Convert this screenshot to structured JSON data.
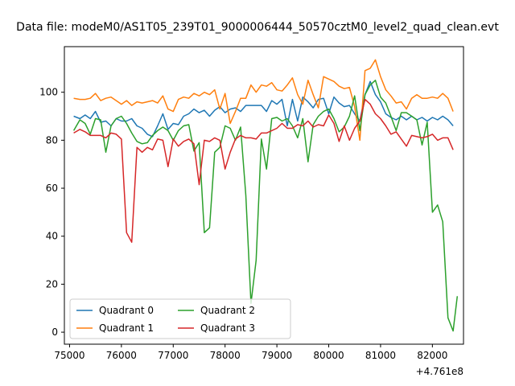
{
  "chart_data": {
    "type": "line",
    "title": "Data file: modeM0/AS1T05_239T01_9000006444_50570cztM0_level2_quad_clean.evt",
    "xlabel": "",
    "ylabel": "",
    "x_offset_label": "+4.761e8",
    "xlim": [
      74900,
      82600
    ],
    "ylim": [
      -5,
      119
    ],
    "x_ticks": [
      75000,
      76000,
      77000,
      78000,
      79000,
      80000,
      81000,
      82000
    ],
    "x_tick_labels": [
      "75000",
      "76000",
      "77000",
      "78000",
      "79000",
      "80000",
      "81000",
      "82000"
    ],
    "y_ticks": [
      0,
      20,
      40,
      60,
      80,
      100
    ],
    "y_tick_labels": [
      "0",
      "20",
      "40",
      "60",
      "80",
      "100"
    ],
    "legend_position": "lower-left",
    "legend_columns": 2,
    "series": [
      {
        "name": "Quadrant 0",
        "color": "#1f77b4",
        "points": [
          [
            75080,
            90
          ],
          [
            75200,
            89
          ],
          [
            75300,
            90.5
          ],
          [
            75400,
            89
          ],
          [
            75500,
            92
          ],
          [
            75600,
            87.5
          ],
          [
            75700,
            88
          ],
          [
            75800,
            86
          ],
          [
            75900,
            89
          ],
          [
            76000,
            88
          ],
          [
            76100,
            88
          ],
          [
            76200,
            89
          ],
          [
            76300,
            86
          ],
          [
            76400,
            85
          ],
          [
            76500,
            82.5
          ],
          [
            76600,
            81.5
          ],
          [
            76700,
            86
          ],
          [
            76800,
            91
          ],
          [
            76900,
            84.5
          ],
          [
            77000,
            87
          ],
          [
            77100,
            86.5
          ],
          [
            77200,
            90
          ],
          [
            77300,
            91
          ],
          [
            77400,
            93
          ],
          [
            77500,
            91.5
          ],
          [
            77600,
            92.5
          ],
          [
            77700,
            90
          ],
          [
            77800,
            92.5
          ],
          [
            77900,
            94
          ],
          [
            78000,
            91.5
          ],
          [
            78100,
            93
          ],
          [
            78200,
            93.5
          ],
          [
            78300,
            92
          ],
          [
            78400,
            94.5
          ],
          [
            78500,
            94.5
          ],
          [
            78600,
            94.5
          ],
          [
            78700,
            94.5
          ],
          [
            78800,
            92
          ],
          [
            78900,
            96.5
          ],
          [
            79000,
            95
          ],
          [
            79100,
            97
          ],
          [
            79200,
            86
          ],
          [
            79300,
            97
          ],
          [
            79400,
            88
          ],
          [
            79500,
            98
          ],
          [
            79600,
            96
          ],
          [
            79700,
            93.5
          ],
          [
            79800,
            97
          ],
          [
            79900,
            97.5
          ],
          [
            80000,
            91
          ],
          [
            80100,
            98
          ],
          [
            80200,
            95.5
          ],
          [
            80300,
            94
          ],
          [
            80400,
            94.5
          ],
          [
            80500,
            91
          ],
          [
            80600,
            88
          ],
          [
            80700,
            99
          ],
          [
            80800,
            104.5
          ],
          [
            80900,
            99
          ],
          [
            81000,
            96
          ],
          [
            81100,
            91
          ],
          [
            81200,
            89.5
          ],
          [
            81300,
            88.5
          ],
          [
            81400,
            90
          ],
          [
            81500,
            88.5
          ],
          [
            81600,
            90
          ],
          [
            81700,
            88.5
          ],
          [
            81800,
            89.5
          ],
          [
            81900,
            88
          ],
          [
            82000,
            89.5
          ],
          [
            82100,
            88.5
          ],
          [
            82200,
            90
          ],
          [
            82300,
            88.5
          ],
          [
            82400,
            86
          ]
        ]
      },
      {
        "name": "Quadrant 1",
        "color": "#ff7f0e",
        "points": [
          [
            75080,
            97.5
          ],
          [
            75200,
            97
          ],
          [
            75300,
            97
          ],
          [
            75400,
            97.5
          ],
          [
            75500,
            99.5
          ],
          [
            75600,
            96.5
          ],
          [
            75700,
            97.5
          ],
          [
            75800,
            98
          ],
          [
            75900,
            96.5
          ],
          [
            76000,
            95
          ],
          [
            76100,
            96.5
          ],
          [
            76200,
            94.5
          ],
          [
            76300,
            96
          ],
          [
            76400,
            95.5
          ],
          [
            76500,
            96
          ],
          [
            76600,
            96.5
          ],
          [
            76700,
            95.5
          ],
          [
            76800,
            98.5
          ],
          [
            76900,
            93
          ],
          [
            77000,
            92
          ],
          [
            77100,
            97
          ],
          [
            77200,
            98
          ],
          [
            77300,
            97.5
          ],
          [
            77400,
            99.5
          ],
          [
            77500,
            98.5
          ],
          [
            77600,
            100
          ],
          [
            77700,
            99
          ],
          [
            77800,
            101
          ],
          [
            77900,
            93
          ],
          [
            78000,
            99.5
          ],
          [
            78100,
            87
          ],
          [
            78200,
            92
          ],
          [
            78300,
            97.5
          ],
          [
            78400,
            97.5
          ],
          [
            78500,
            103
          ],
          [
            78600,
            100
          ],
          [
            78700,
            103
          ],
          [
            78800,
            102.5
          ],
          [
            78900,
            104
          ],
          [
            79000,
            101
          ],
          [
            79100,
            100.5
          ],
          [
            79200,
            103
          ],
          [
            79300,
            106
          ],
          [
            79400,
            99
          ],
          [
            79500,
            95
          ],
          [
            79600,
            105
          ],
          [
            79700,
            99
          ],
          [
            79800,
            93.5
          ],
          [
            79900,
            106.5
          ],
          [
            80000,
            105.5
          ],
          [
            80100,
            104.5
          ],
          [
            80200,
            102.5
          ],
          [
            80300,
            101.5
          ],
          [
            80400,
            102
          ],
          [
            80500,
            94
          ],
          [
            80600,
            80
          ],
          [
            80700,
            109
          ],
          [
            80800,
            110
          ],
          [
            80900,
            113.5
          ],
          [
            81000,
            106.5
          ],
          [
            81100,
            101
          ],
          [
            81200,
            98.5
          ],
          [
            81300,
            95.5
          ],
          [
            81400,
            96
          ],
          [
            81500,
            93
          ],
          [
            81600,
            97.5
          ],
          [
            81700,
            99
          ],
          [
            81800,
            97.5
          ],
          [
            81900,
            97.5
          ],
          [
            82000,
            98
          ],
          [
            82100,
            97.5
          ],
          [
            82200,
            99.5
          ],
          [
            82300,
            97.5
          ],
          [
            82400,
            92
          ]
        ]
      },
      {
        "name": "Quadrant 2",
        "color": "#2ca02c",
        "points": [
          [
            75080,
            84
          ],
          [
            75200,
            88.5
          ],
          [
            75300,
            87
          ],
          [
            75400,
            82.5
          ],
          [
            75500,
            89
          ],
          [
            75600,
            88.5
          ],
          [
            75700,
            75
          ],
          [
            75800,
            86
          ],
          [
            75900,
            89
          ],
          [
            76000,
            90
          ],
          [
            76100,
            87
          ],
          [
            76200,
            83
          ],
          [
            76300,
            79.5
          ],
          [
            76400,
            78.5
          ],
          [
            76500,
            79
          ],
          [
            76600,
            82
          ],
          [
            76700,
            84
          ],
          [
            76800,
            85.5
          ],
          [
            76900,
            84
          ],
          [
            77000,
            80
          ],
          [
            77100,
            84
          ],
          [
            77200,
            86
          ],
          [
            77300,
            86.5
          ],
          [
            77400,
            75.5
          ],
          [
            77500,
            79
          ],
          [
            77600,
            41.5
          ],
          [
            77700,
            43.5
          ],
          [
            77800,
            75
          ],
          [
            77900,
            77
          ],
          [
            78000,
            86
          ],
          [
            78100,
            85
          ],
          [
            78200,
            80
          ],
          [
            78300,
            85.5
          ],
          [
            78400,
            57
          ],
          [
            78500,
            12
          ],
          [
            78600,
            30
          ],
          [
            78700,
            80.5
          ],
          [
            78800,
            68
          ],
          [
            78900,
            89
          ],
          [
            79000,
            89.5
          ],
          [
            79100,
            88
          ],
          [
            79200,
            89
          ],
          [
            79300,
            86
          ],
          [
            79400,
            81
          ],
          [
            79500,
            89
          ],
          [
            79600,
            71
          ],
          [
            79700,
            86.5
          ],
          [
            79800,
            90
          ],
          [
            79900,
            92
          ],
          [
            80000,
            93
          ],
          [
            80100,
            89
          ],
          [
            80200,
            83.5
          ],
          [
            80300,
            85.5
          ],
          [
            80400,
            90
          ],
          [
            80500,
            98.5
          ],
          [
            80600,
            84
          ],
          [
            80700,
            99
          ],
          [
            80800,
            103
          ],
          [
            80900,
            105
          ],
          [
            81000,
            98
          ],
          [
            81100,
            95.5
          ],
          [
            81200,
            90
          ],
          [
            81300,
            84
          ],
          [
            81400,
            91.5
          ],
          [
            81500,
            91.5
          ],
          [
            81600,
            90
          ],
          [
            81700,
            88.5
          ],
          [
            81800,
            78
          ],
          [
            81900,
            87.5
          ],
          [
            82000,
            50
          ],
          [
            82100,
            53
          ],
          [
            82200,
            46
          ],
          [
            82300,
            6
          ],
          [
            82400,
            0.5
          ],
          [
            82480,
            15
          ]
        ]
      },
      {
        "name": "Quadrant 3",
        "color": "#d62728",
        "points": [
          [
            75080,
            83
          ],
          [
            75200,
            84.5
          ],
          [
            75300,
            83.5
          ],
          [
            75400,
            82
          ],
          [
            75500,
            82
          ],
          [
            75600,
            82
          ],
          [
            75700,
            81
          ],
          [
            75800,
            83
          ],
          [
            75900,
            82.5
          ],
          [
            76000,
            80.5
          ],
          [
            76100,
            41.5
          ],
          [
            76200,
            37.5
          ],
          [
            76300,
            77
          ],
          [
            76400,
            75
          ],
          [
            76500,
            77
          ],
          [
            76600,
            76
          ],
          [
            76700,
            80.5
          ],
          [
            76800,
            80
          ],
          [
            76900,
            69
          ],
          [
            77000,
            80.5
          ],
          [
            77100,
            77.5
          ],
          [
            77200,
            79.5
          ],
          [
            77300,
            80.5
          ],
          [
            77400,
            78.5
          ],
          [
            77500,
            61.5
          ],
          [
            77600,
            80
          ],
          [
            77700,
            79.5
          ],
          [
            77800,
            81
          ],
          [
            77900,
            80
          ],
          [
            78000,
            68
          ],
          [
            78100,
            75
          ],
          [
            78200,
            80.5
          ],
          [
            78300,
            82
          ],
          [
            78400,
            81
          ],
          [
            78500,
            81
          ],
          [
            78600,
            80.5
          ],
          [
            78700,
            83
          ],
          [
            78800,
            83
          ],
          [
            78900,
            84
          ],
          [
            79000,
            85
          ],
          [
            79100,
            87
          ],
          [
            79200,
            85
          ],
          [
            79300,
            85
          ],
          [
            79400,
            86.5
          ],
          [
            79500,
            86
          ],
          [
            79600,
            88
          ],
          [
            79700,
            85.5
          ],
          [
            79800,
            86.5
          ],
          [
            79900,
            86
          ],
          [
            80000,
            90.5
          ],
          [
            80100,
            87
          ],
          [
            80200,
            79.5
          ],
          [
            80300,
            86
          ],
          [
            80400,
            80
          ],
          [
            80500,
            85
          ],
          [
            80600,
            88
          ],
          [
            80700,
            97
          ],
          [
            80800,
            95
          ],
          [
            80900,
            91
          ],
          [
            81000,
            89
          ],
          [
            81100,
            86
          ],
          [
            81200,
            82.5
          ],
          [
            81300,
            83.5
          ],
          [
            81400,
            80.5
          ],
          [
            81500,
            77.5
          ],
          [
            81600,
            82
          ],
          [
            81700,
            81.5
          ],
          [
            81800,
            81
          ],
          [
            81900,
            81.5
          ],
          [
            82000,
            82.5
          ],
          [
            82100,
            80
          ],
          [
            82200,
            81
          ],
          [
            82300,
            81
          ],
          [
            82400,
            76
          ]
        ]
      }
    ]
  }
}
